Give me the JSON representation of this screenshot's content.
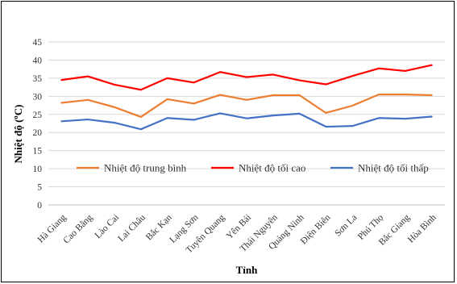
{
  "chart_data": {
    "type": "line",
    "xlabel": "Tỉnh",
    "ylabel": "Nhiệt độ (ºC)",
    "ylim": [
      0,
      45
    ],
    "yticks": [
      0,
      5,
      10,
      15,
      20,
      25,
      30,
      35,
      40,
      45
    ],
    "grid": true,
    "legend_position": "middle",
    "categories": [
      "Hà Giang",
      "Cao Bằng",
      "Lào Cai",
      "Lai Châu",
      "Bắc Kạn",
      "Lạng Sơn",
      "Tuyên Quang",
      "Yên Bái",
      "Thái Nguyên",
      "Quảng Ninh",
      "Điện Biên",
      "Sơn La",
      "Phú Thọ",
      "Bắc Giang",
      "Hòa Bình"
    ],
    "series": [
      {
        "name": "Nhiệt độ trung bình",
        "color": "#ED7D31",
        "values": [
          28.2,
          29.0,
          27.0,
          24.3,
          29.2,
          28.0,
          30.4,
          29.0,
          30.3,
          30.3,
          25.4,
          27.4,
          30.5,
          30.5,
          30.3
        ]
      },
      {
        "name": "Nhiệt độ tối cao",
        "color": "#FF0000",
        "values": [
          34.5,
          35.5,
          33.2,
          31.8,
          35.0,
          33.8,
          36.7,
          35.3,
          36.0,
          34.4,
          33.3,
          35.6,
          37.7,
          37.0,
          38.6
        ]
      },
      {
        "name": "Nhiệt độ tối thấp",
        "color": "#4472C4",
        "values": [
          23.1,
          23.6,
          22.7,
          20.9,
          24.0,
          23.5,
          25.3,
          23.9,
          24.7,
          25.2,
          21.6,
          21.8,
          24.0,
          23.8,
          24.4
        ]
      }
    ]
  }
}
